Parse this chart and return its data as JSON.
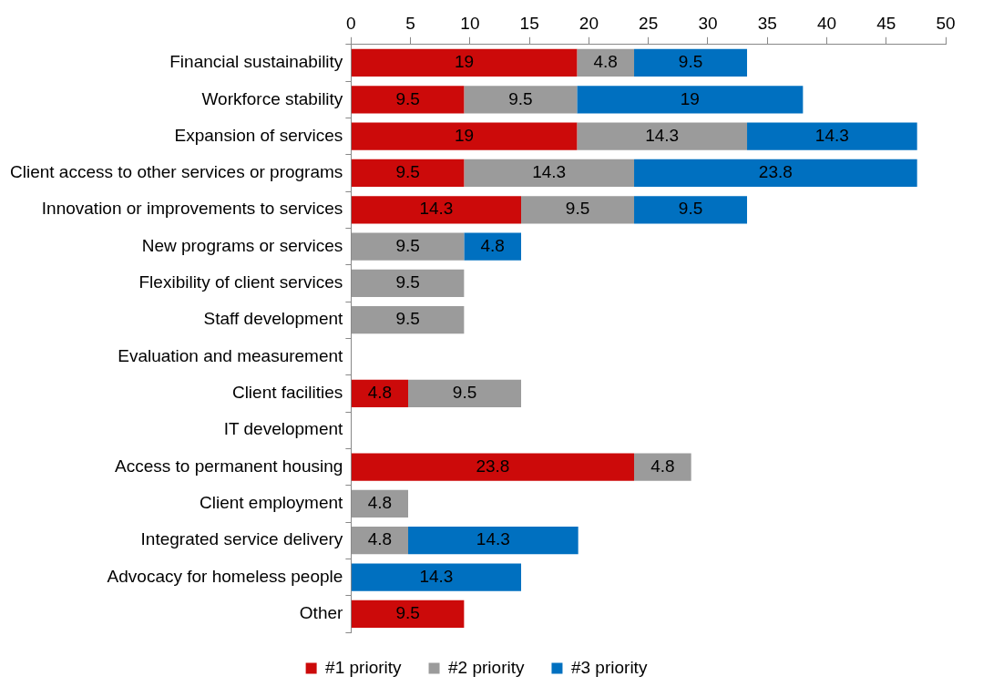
{
  "chart_data": {
    "type": "bar",
    "orientation": "horizontal",
    "stacked": true,
    "categories": [
      "Financial sustainability",
      "Workforce stability",
      "Expansion of services",
      "Client access to other services or programs",
      "Innovation or improvements to services",
      "New programs or services",
      "Flexibility of client services",
      "Staff development",
      "Evaluation and measurement",
      "Client facilities",
      "IT development",
      "Access to permanent housing",
      "Client employment",
      "Integrated service delivery",
      "Advocacy for homeless people",
      "Other"
    ],
    "series": [
      {
        "name": "#1 priority",
        "color": "#cc0a0a",
        "values": [
          19,
          9.5,
          19,
          9.5,
          14.3,
          null,
          null,
          null,
          null,
          4.8,
          null,
          23.8,
          null,
          null,
          null,
          9.5
        ]
      },
      {
        "name": "#2 priority",
        "color": "#9b9b9b",
        "values": [
          4.8,
          9.5,
          14.3,
          14.3,
          9.5,
          9.5,
          9.5,
          9.5,
          null,
          9.5,
          null,
          4.8,
          4.8,
          4.8,
          null,
          null
        ]
      },
      {
        "name": "#3 priority",
        "color": "#0070c0",
        "values": [
          9.5,
          19,
          14.3,
          23.8,
          9.5,
          4.8,
          null,
          null,
          null,
          null,
          null,
          null,
          null,
          14.3,
          14.3,
          null
        ]
      }
    ],
    "xlim": [
      0,
      50
    ],
    "xticks": [
      0,
      5,
      10,
      15,
      20,
      25,
      30,
      35,
      40,
      45,
      50
    ],
    "data_labels": true,
    "legend": "bottom",
    "grid": false
  }
}
